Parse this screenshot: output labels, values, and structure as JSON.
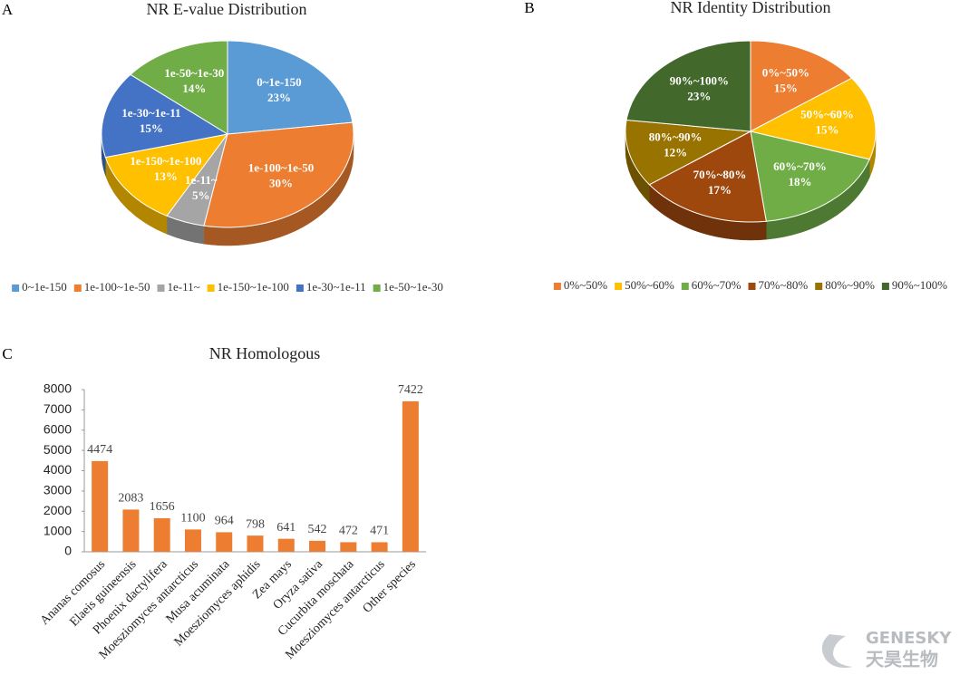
{
  "chart_data": [
    {
      "type": "pie",
      "panel": "A",
      "title": "NR E-value Distribution",
      "categories": [
        "0~1e-150",
        "1e-100~1e-50",
        "1e-11~",
        "1e-150~1e-100",
        "1e-30~1e-11",
        "1e-50~1e-30"
      ],
      "values": [
        23,
        30,
        5,
        13,
        15,
        14
      ],
      "value_labels": [
        "23%",
        "30%",
        "5%",
        "13%",
        "15%",
        "14%"
      ],
      "colors": [
        "#5b9bd5",
        "#ed7d31",
        "#a5a5a5",
        "#ffc000",
        "#4472c4",
        "#70ad47"
      ],
      "legend": "bottom"
    },
    {
      "type": "pie",
      "panel": "B",
      "title": "NR Identity Distribution",
      "categories": [
        "0%~50%",
        "50%~60%",
        "60%~70%",
        "70%~80%",
        "80%~90%",
        "90%~100%"
      ],
      "values": [
        15,
        15,
        18,
        17,
        12,
        23
      ],
      "value_labels": [
        "15%",
        "15%",
        "18%",
        "17%",
        "12%",
        "23%"
      ],
      "colors": [
        "#ed7d31",
        "#ffc000",
        "#70ad47",
        "#9e480e",
        "#997300",
        "#43682b"
      ],
      "legend": "bottom"
    },
    {
      "type": "bar",
      "panel": "C",
      "title": "NR Homologous",
      "categories": [
        "Ananas comosus",
        "Elaeis guineensis",
        "Phoenix dactylifera",
        "Moesziomyces antarcticus",
        "Musa acuminata",
        "Moesziomyces aphidis",
        "Zea mays",
        "Oryza sativa",
        "Cucurbita moschata",
        "Moesziomyces antarcticus",
        "Other species"
      ],
      "values": [
        4474,
        2083,
        1656,
        1100,
        964,
        798,
        641,
        542,
        472,
        471,
        7422
      ],
      "color": "#ed7d31",
      "ylim": [
        0,
        8000
      ],
      "yticks": [
        0,
        1000,
        2000,
        3000,
        4000,
        5000,
        6000,
        7000,
        8000
      ]
    }
  ],
  "logo": {
    "name": "GENESKY",
    "subtitle": "天昊生物"
  }
}
